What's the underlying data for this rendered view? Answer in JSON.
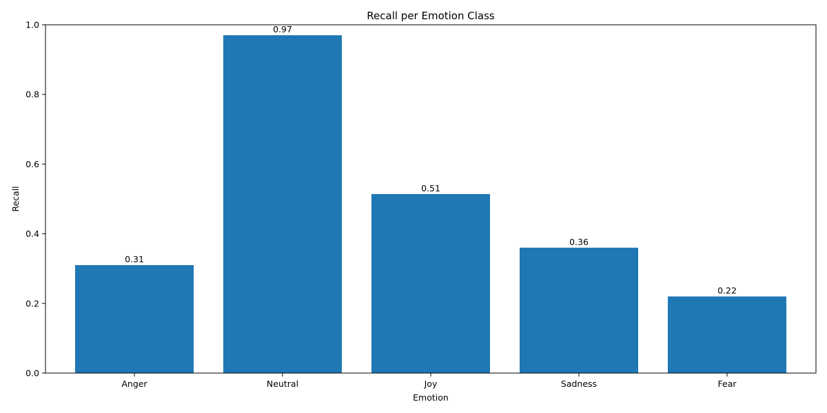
{
  "chart_data": {
    "type": "bar",
    "title": "Recall per Emotion Class",
    "xlabel": "Emotion",
    "ylabel": "Recall",
    "categories": [
      "Anger",
      "Neutral",
      "Joy",
      "Sadness",
      "Fear"
    ],
    "values": [
      0.31,
      0.97,
      0.514,
      0.36,
      0.22
    ],
    "data_labels": [
      "0.31",
      "0.97",
      "0.51",
      "0.36",
      "0.22"
    ],
    "ylim": [
      0,
      1.0
    ],
    "yticks": [
      0.0,
      0.2,
      0.4,
      0.6,
      0.8,
      1.0
    ],
    "ytick_labels": [
      "0.0",
      "0.2",
      "0.4",
      "0.6",
      "0.8",
      "1.0"
    ],
    "bar_color": "#1f77b4",
    "grid": false,
    "legend": "none"
  }
}
